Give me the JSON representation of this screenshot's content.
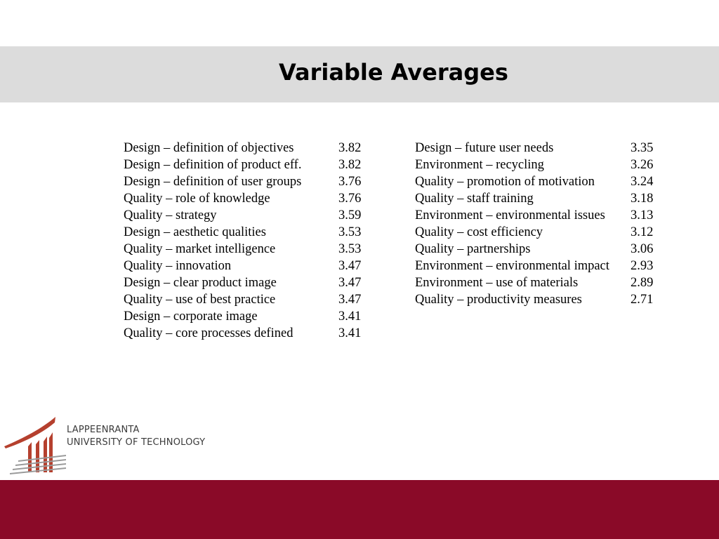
{
  "title": "Variable Averages",
  "left_column": [
    {
      "label": "Design – definition of objectives",
      "value": "3.82"
    },
    {
      "label": "Design – definition of product eff.",
      "value": "3.82"
    },
    {
      "label": "Design – definition of user groups",
      "value": "3.76"
    },
    {
      "label": "Quality – role of knowledge",
      "value": "3.76"
    },
    {
      "label": "Quality – strategy",
      "value": "3.59"
    },
    {
      "label": "Design – aesthetic qualities",
      "value": "3.53"
    },
    {
      "label": "Quality – market intelligence",
      "value": "3.53"
    },
    {
      "label": "Quality – innovation",
      "value": "3.47"
    },
    {
      "label": "Design – clear product image",
      "value": "3.47"
    },
    {
      "label": "Quality – use of best practice",
      "value": "3.47"
    },
    {
      "label": "Design – corporate image",
      "value": "3.41"
    },
    {
      "label": "Quality – core processes defined",
      "value": "3.41"
    }
  ],
  "right_column": [
    {
      "label": "Design – future user needs",
      "value": "3.35"
    },
    {
      "label": "Environment – recycling",
      "value": "3.26"
    },
    {
      "label": "Quality – promotion of motivation",
      "value": "3.24"
    },
    {
      "label": "Quality – staff training",
      "value": "3.18"
    },
    {
      "label": "Environment – environmental issues",
      "value": "3.13"
    },
    {
      "label": "Quality – cost efficiency",
      "value": "3.12"
    },
    {
      "label": "Quality – partnerships",
      "value": "3.06"
    },
    {
      "label": "Environment – environmental impact",
      "value": "2.93"
    },
    {
      "label": "Environment – use of materials",
      "value": "2.89"
    },
    {
      "label": "Quality – productivity measures",
      "value": "2.71"
    }
  ],
  "logo": {
    "line1": "LAPPEENRANTA",
    "line2": "UNIVERSITY OF TECHNOLOGY",
    "icon": "university-emblem-icon"
  },
  "colors": {
    "title_band": "#dcdcdc",
    "footer_band": "#8a0a28",
    "logo_red": "#b5402e",
    "logo_grey": "#9a9a9a"
  }
}
